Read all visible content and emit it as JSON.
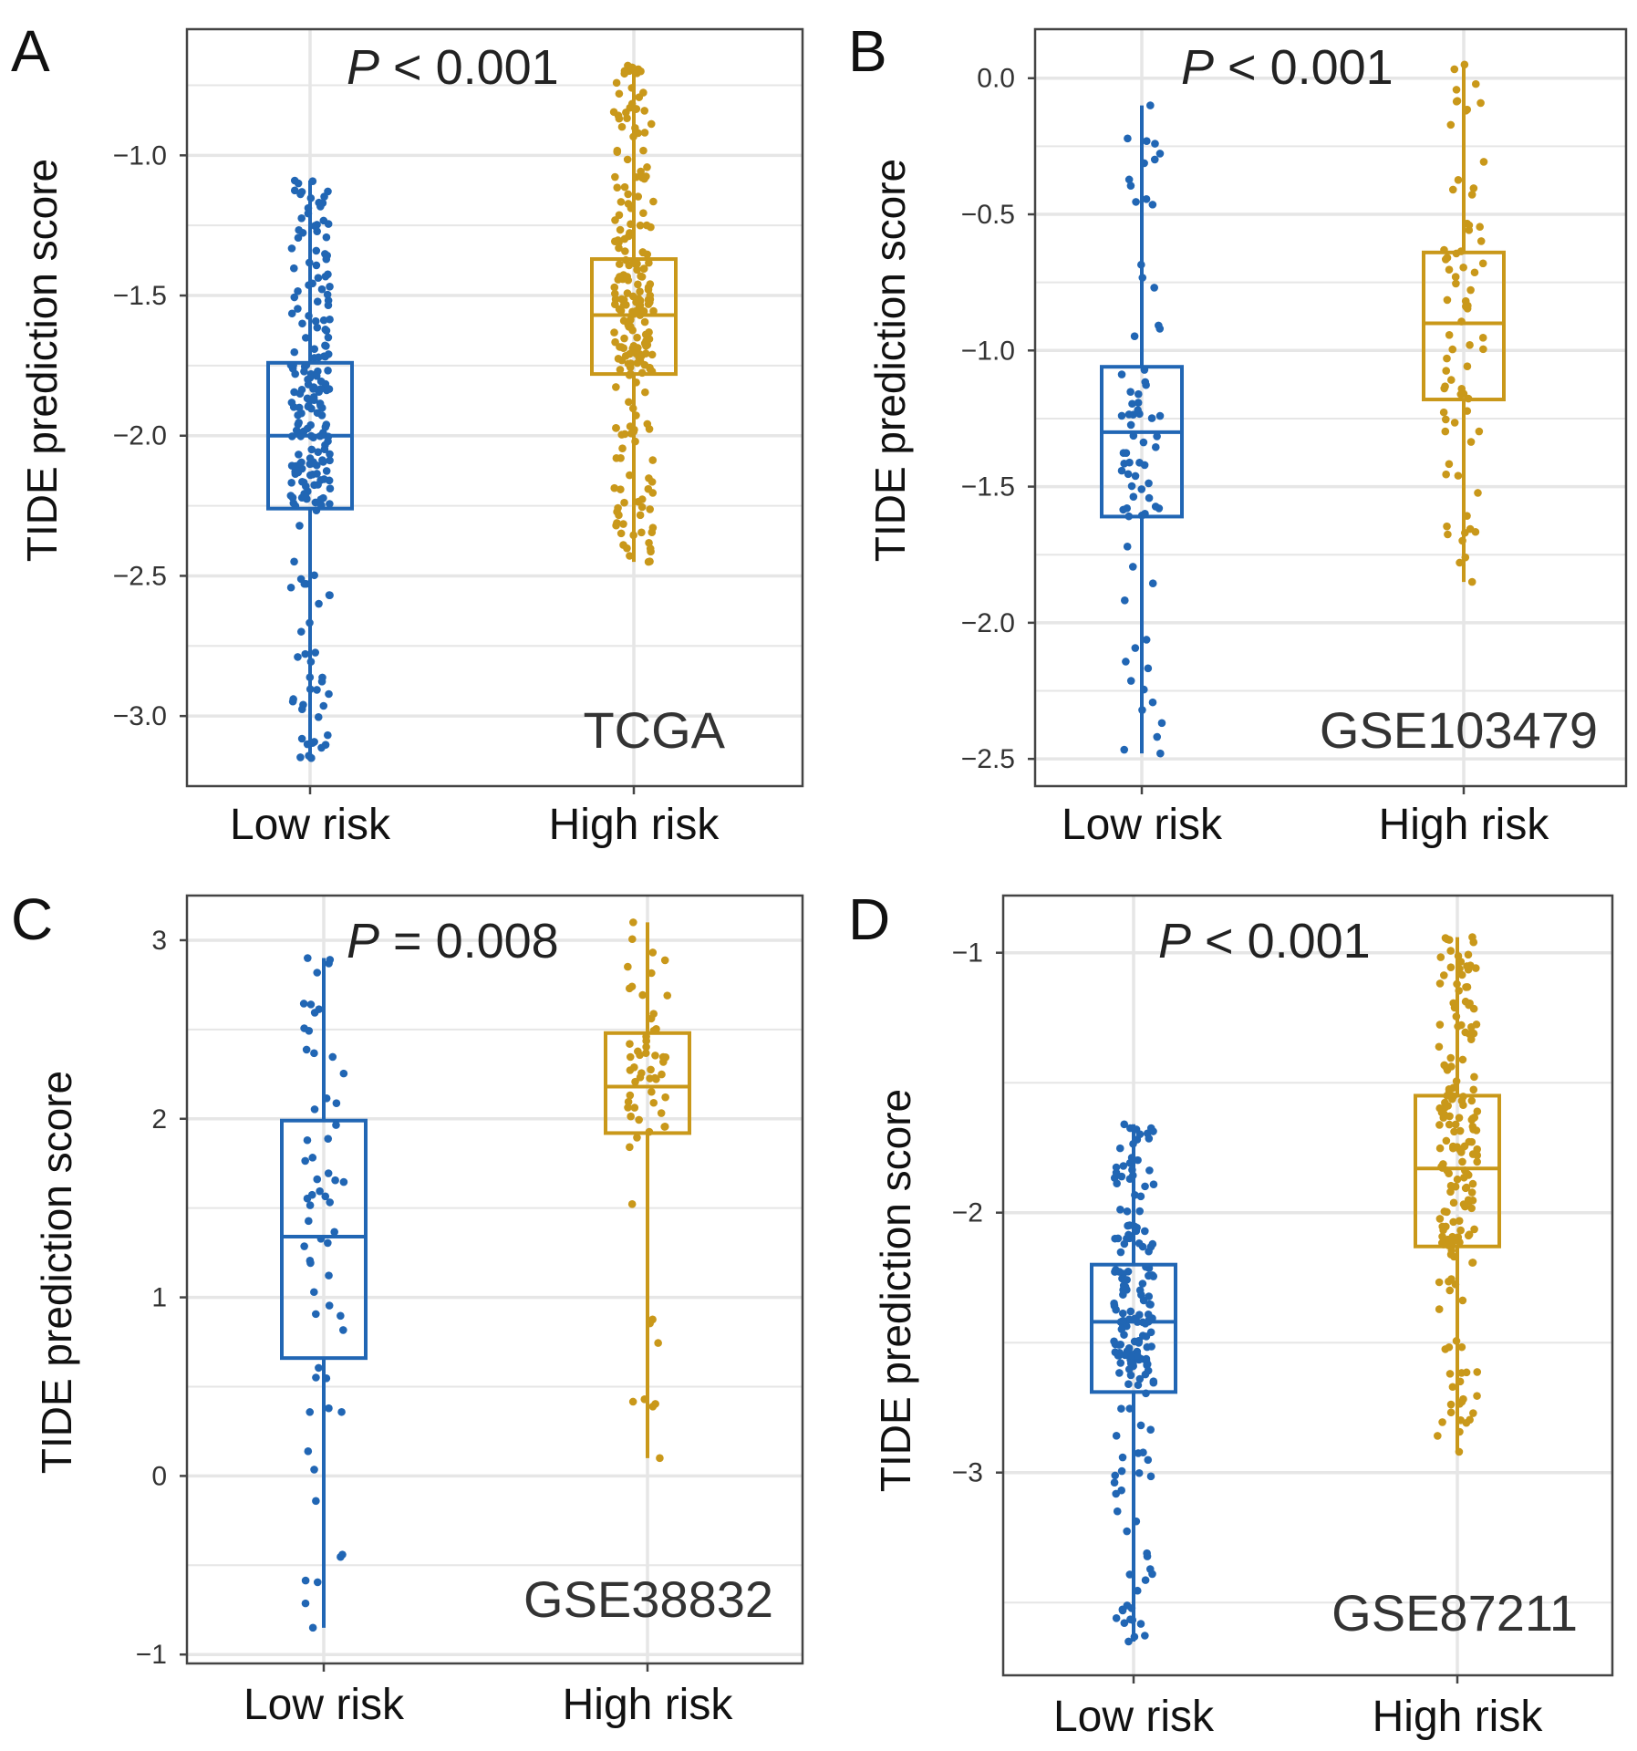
{
  "colors": {
    "low": "#2166b4",
    "high": "#c9981a",
    "grid": "#e6e6e6",
    "frame": "#444444",
    "background": "#ffffff"
  },
  "chart_data": [
    {
      "panel": "A",
      "type": "box",
      "dataset": "TCGA",
      "p_symbol": "P",
      "p_rest": " < 0.001",
      "ylabel": "TIDE prediction score",
      "ylim": [
        -3.25,
        -0.55
      ],
      "yticks": [
        -1.0,
        -1.5,
        -2.0,
        -2.5,
        -3.0
      ],
      "ytick_labels": [
        "−1.0",
        "−1.5",
        "−2.0",
        "−2.5",
        "−3.0"
      ],
      "categories": [
        "Low risk",
        "High risk"
      ],
      "groups": [
        {
          "name": "Low risk",
          "color": "low",
          "n": 220,
          "seed": 11,
          "min": -3.15,
          "q1": -2.26,
          "median": -2.0,
          "q3": -1.74,
          "max": -1.09
        },
        {
          "name": "High risk",
          "color": "high",
          "n": 220,
          "seed": 12,
          "min": -2.45,
          "q1": -1.78,
          "median": -1.57,
          "q3": -1.37,
          "max": -0.68
        }
      ]
    },
    {
      "panel": "B",
      "type": "box",
      "dataset": "GSE103479",
      "p_symbol": "P",
      "p_rest": " < 0.001",
      "ylabel": "TIDE prediction score",
      "ylim": [
        -2.6,
        0.18
      ],
      "yticks": [
        0.0,
        -0.5,
        -1.0,
        -1.5,
        -2.0,
        -2.5
      ],
      "ytick_labels": [
        "0.0",
        "−0.5",
        "−1.0",
        "−1.5",
        "−2.0",
        "−2.5"
      ],
      "categories": [
        "Low risk",
        "High risk"
      ],
      "groups": [
        {
          "name": "Low risk",
          "color": "low",
          "n": 75,
          "seed": 21,
          "min": -2.48,
          "q1": -1.61,
          "median": -1.3,
          "q3": -1.06,
          "max": -0.1
        },
        {
          "name": "High risk",
          "color": "high",
          "n": 75,
          "seed": 22,
          "min": -1.85,
          "q1": -1.18,
          "median": -0.9,
          "q3": -0.64,
          "max": 0.05
        }
      ]
    },
    {
      "panel": "C",
      "type": "box",
      "dataset": "GSE38832",
      "p_symbol": "P",
      "p_rest": " = 0.008",
      "ylabel": "TIDE prediction score",
      "ylim": [
        -1.05,
        3.25
      ],
      "yticks": [
        3,
        2,
        1,
        0,
        -1
      ],
      "ytick_labels": [
        "3",
        "2",
        "1",
        "0",
        "−1"
      ],
      "categories": [
        "Low risk",
        "High risk"
      ],
      "groups": [
        {
          "name": "Low risk",
          "color": "low",
          "n": 60,
          "seed": 31,
          "min": -0.85,
          "q1": 0.66,
          "median": 1.34,
          "q3": 1.99,
          "max": 2.9
        },
        {
          "name": "High risk",
          "color": "high",
          "n": 60,
          "seed": 32,
          "min": 0.1,
          "q1": 1.92,
          "median": 2.18,
          "q3": 2.48,
          "max": 3.1
        }
      ]
    },
    {
      "panel": "D",
      "type": "box",
      "dataset": "GSE87211",
      "p_symbol": "P",
      "p_rest": " < 0.001",
      "ylabel": "TIDE prediction score",
      "ylim": [
        -3.78,
        -0.78
      ],
      "yticks": [
        -1,
        -2,
        -3
      ],
      "ytick_labels": [
        "−1",
        "−2",
        "−3"
      ],
      "categories": [
        "Low risk",
        "High risk"
      ],
      "groups": [
        {
          "name": "Low risk",
          "color": "low",
          "n": 180,
          "seed": 41,
          "min": -3.65,
          "q1": -2.69,
          "median": -2.42,
          "q3": -2.2,
          "max": -1.66
        },
        {
          "name": "High risk",
          "color": "high",
          "n": 180,
          "seed": 42,
          "min": -2.92,
          "q1": -2.13,
          "median": -1.83,
          "q3": -1.55,
          "max": -0.94
        }
      ]
    }
  ]
}
